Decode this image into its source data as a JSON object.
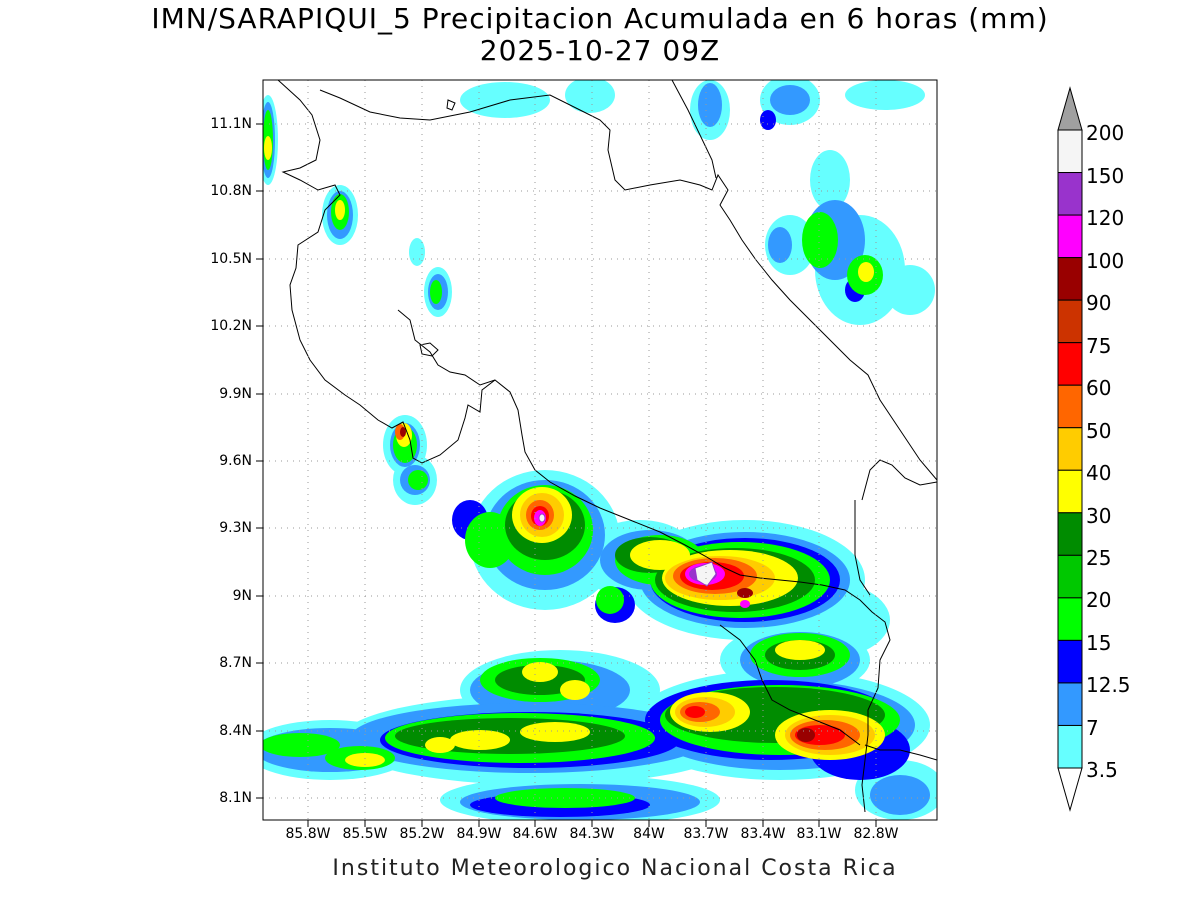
{
  "title": {
    "line1": "IMN/SARAPIQUI_5 Precipitacion Acumulada en 6 horas (mm)",
    "line2": "2025-10-27 09Z"
  },
  "axes": {
    "lat_labels": [
      "11.1N",
      "10.8N",
      "10.5N",
      "10.2N",
      "9.9N",
      "9.6N",
      "9.3N",
      "9N",
      "8.7N",
      "8.4N",
      "8.1N"
    ],
    "lon_labels": [
      "85.8W",
      "85.5W",
      "85.2W",
      "84.9W",
      "84.6W",
      "84.3W",
      "84W",
      "83.7W",
      "83.4W",
      "83.1W",
      "82.8W"
    ],
    "grid": "dotted"
  },
  "legend": {
    "levels": [
      "200",
      "150",
      "120",
      "100",
      "90",
      "75",
      "60",
      "50",
      "40",
      "30",
      "25",
      "20",
      "15",
      "12.5",
      "7",
      "3.5"
    ],
    "colors": [
      "#f5f5f5",
      "#9933cc",
      "#ff00ff",
      "#990000",
      "#cc3300",
      "#ff0000",
      "#ff6600",
      "#ffcc00",
      "#ffff00",
      "#008c00",
      "#00c800",
      "#00ff00",
      "#0000ff",
      "#3399ff",
      "#66ffff"
    ],
    "arrow_top_color": "#a0a0a0",
    "arrow_bottom_color": "#ffffff"
  },
  "footer": "Instituto Meteorologico Nacional Costa Rica"
}
